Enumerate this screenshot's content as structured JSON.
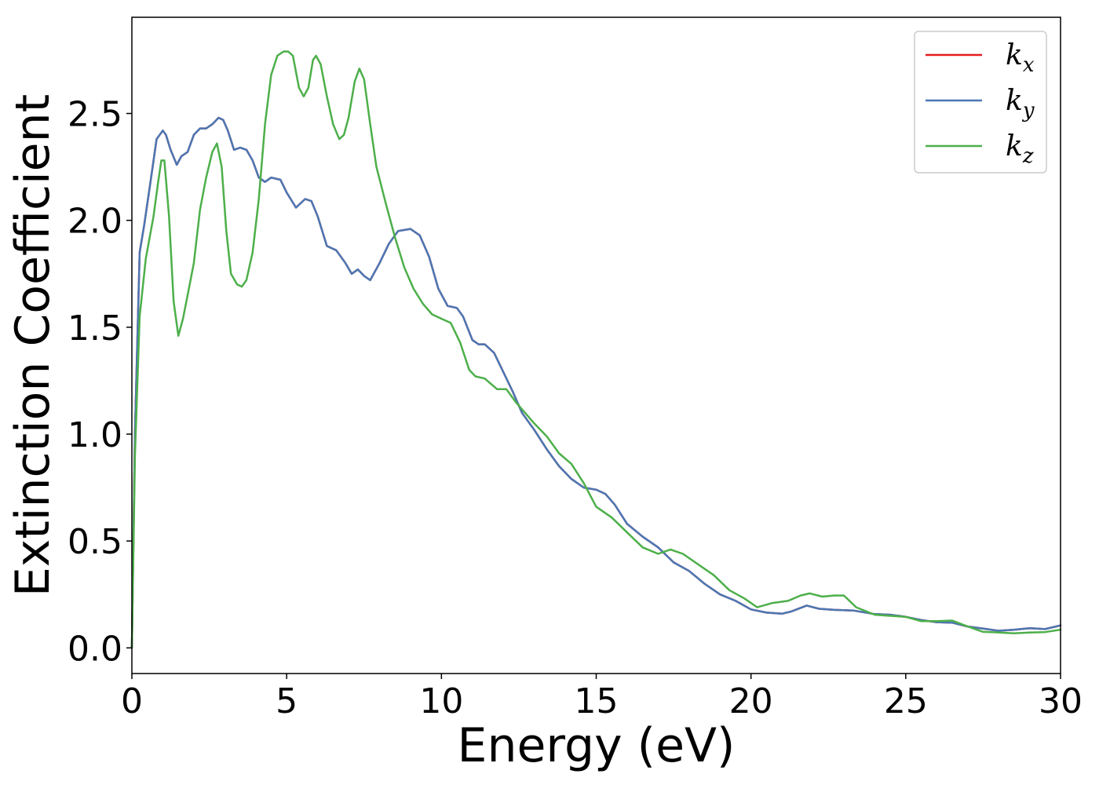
{
  "chart_data": {
    "type": "line",
    "title": "",
    "xlabel": "Energy (eV)",
    "ylabel": "Extinction Coefficient",
    "xlim": [
      0,
      30
    ],
    "ylim": [
      -0.12,
      2.95
    ],
    "xticks": [
      0,
      5,
      10,
      15,
      20,
      25,
      30
    ],
    "xtick_labels": [
      "0",
      "5",
      "10",
      "15",
      "20",
      "25",
      "30"
    ],
    "yticks": [
      0.0,
      0.5,
      1.0,
      1.5,
      2.0,
      2.5
    ],
    "ytick_labels": [
      "0.0",
      "0.5",
      "1.0",
      "1.5",
      "2.0",
      "2.5"
    ],
    "grid": false,
    "legend_position": "top-right",
    "series": [
      {
        "name": "k",
        "subscript": "x",
        "color": "#e41a1c",
        "x": [
          0,
          0.1,
          0.25,
          0.4,
          0.6,
          0.8,
          1.0,
          1.1,
          1.25,
          1.45,
          1.6,
          1.8,
          2.0,
          2.2,
          2.4,
          2.6,
          2.8,
          2.95,
          3.1,
          3.3,
          3.5,
          3.7,
          3.9,
          4.1,
          4.3,
          4.5,
          4.8,
          5.0,
          5.3,
          5.6,
          5.8,
          6.0,
          6.3,
          6.6,
          6.9,
          7.1,
          7.3,
          7.5,
          7.7,
          8.0,
          8.3,
          8.6,
          9.0,
          9.3,
          9.6,
          9.9,
          10.2,
          10.5,
          10.7,
          11.0,
          11.2,
          11.4,
          11.7,
          12.0,
          12.3,
          12.6,
          13.0,
          13.4,
          13.8,
          14.2,
          14.6,
          15.0,
          15.3,
          15.6,
          16.0,
          16.5,
          17.0,
          17.5,
          18.0,
          18.5,
          19.0,
          19.5,
          20.0,
          20.5,
          21.0,
          21.3,
          21.8,
          22.2,
          22.7,
          23.3,
          24.0,
          24.5,
          25.0,
          25.5,
          26.0,
          26.5,
          27.0,
          27.5,
          28.0,
          28.5,
          29.0,
          29.5,
          30.0
        ],
        "y": [
          0,
          1.0,
          1.85,
          1.98,
          2.18,
          2.38,
          2.42,
          2.4,
          2.33,
          2.26,
          2.3,
          2.32,
          2.4,
          2.43,
          2.43,
          2.45,
          2.48,
          2.47,
          2.42,
          2.33,
          2.34,
          2.33,
          2.28,
          2.2,
          2.18,
          2.2,
          2.19,
          2.13,
          2.06,
          2.1,
          2.09,
          2.02,
          1.88,
          1.86,
          1.8,
          1.75,
          1.77,
          1.74,
          1.72,
          1.8,
          1.89,
          1.95,
          1.96,
          1.93,
          1.83,
          1.68,
          1.6,
          1.59,
          1.55,
          1.44,
          1.42,
          1.42,
          1.38,
          1.29,
          1.2,
          1.1,
          1.02,
          0.93,
          0.85,
          0.79,
          0.75,
          0.74,
          0.72,
          0.67,
          0.58,
          0.52,
          0.47,
          0.4,
          0.36,
          0.3,
          0.25,
          0.22,
          0.18,
          0.165,
          0.16,
          0.17,
          0.198,
          0.183,
          0.178,
          0.175,
          0.158,
          0.155,
          0.145,
          0.13,
          0.12,
          0.118,
          0.1,
          0.09,
          0.08,
          0.085,
          0.092,
          0.088,
          0.105
        ]
      },
      {
        "name": "k",
        "subscript": "y",
        "color": "#4a77b4",
        "x": [
          0,
          0.1,
          0.25,
          0.4,
          0.6,
          0.8,
          1.0,
          1.1,
          1.25,
          1.45,
          1.6,
          1.8,
          2.0,
          2.2,
          2.4,
          2.6,
          2.8,
          2.95,
          3.1,
          3.3,
          3.5,
          3.7,
          3.9,
          4.1,
          4.3,
          4.5,
          4.8,
          5.0,
          5.3,
          5.6,
          5.8,
          6.0,
          6.3,
          6.6,
          6.9,
          7.1,
          7.3,
          7.5,
          7.7,
          8.0,
          8.3,
          8.6,
          9.0,
          9.3,
          9.6,
          9.9,
          10.2,
          10.5,
          10.7,
          11.0,
          11.2,
          11.4,
          11.7,
          12.0,
          12.3,
          12.6,
          13.0,
          13.4,
          13.8,
          14.2,
          14.6,
          15.0,
          15.3,
          15.6,
          16.0,
          16.5,
          17.0,
          17.5,
          18.0,
          18.5,
          19.0,
          19.5,
          20.0,
          20.5,
          21.0,
          21.3,
          21.8,
          22.2,
          22.7,
          23.3,
          24.0,
          24.5,
          25.0,
          25.5,
          26.0,
          26.5,
          27.0,
          27.5,
          28.0,
          28.5,
          29.0,
          29.5,
          30.0
        ],
        "y": [
          0,
          1.0,
          1.85,
          1.98,
          2.18,
          2.38,
          2.42,
          2.4,
          2.33,
          2.26,
          2.3,
          2.32,
          2.4,
          2.43,
          2.43,
          2.45,
          2.48,
          2.47,
          2.42,
          2.33,
          2.34,
          2.33,
          2.28,
          2.2,
          2.18,
          2.2,
          2.19,
          2.13,
          2.06,
          2.1,
          2.09,
          2.02,
          1.88,
          1.86,
          1.8,
          1.75,
          1.77,
          1.74,
          1.72,
          1.8,
          1.89,
          1.95,
          1.96,
          1.93,
          1.83,
          1.68,
          1.6,
          1.59,
          1.55,
          1.44,
          1.42,
          1.42,
          1.38,
          1.29,
          1.2,
          1.1,
          1.02,
          0.93,
          0.85,
          0.79,
          0.75,
          0.74,
          0.72,
          0.67,
          0.58,
          0.52,
          0.47,
          0.4,
          0.36,
          0.3,
          0.25,
          0.22,
          0.18,
          0.165,
          0.16,
          0.17,
          0.198,
          0.183,
          0.178,
          0.175,
          0.158,
          0.155,
          0.145,
          0.13,
          0.12,
          0.118,
          0.1,
          0.09,
          0.08,
          0.085,
          0.092,
          0.088,
          0.105
        ]
      },
      {
        "name": "k",
        "subscript": "z",
        "color": "#4daf4a",
        "x": [
          0,
          0.1,
          0.25,
          0.45,
          0.7,
          0.85,
          0.95,
          1.05,
          1.2,
          1.35,
          1.5,
          1.65,
          1.8,
          2.0,
          2.2,
          2.4,
          2.6,
          2.75,
          2.9,
          3.05,
          3.2,
          3.4,
          3.55,
          3.7,
          3.9,
          4.1,
          4.3,
          4.5,
          4.7,
          4.9,
          5.05,
          5.2,
          5.4,
          5.55,
          5.7,
          5.85,
          5.95,
          6.1,
          6.3,
          6.5,
          6.7,
          6.85,
          7.0,
          7.2,
          7.35,
          7.5,
          7.7,
          7.9,
          8.2,
          8.5,
          8.8,
          9.1,
          9.4,
          9.7,
          10.0,
          10.3,
          10.6,
          10.9,
          11.1,
          11.4,
          11.8,
          12.1,
          12.4,
          12.7,
          13.0,
          13.4,
          13.8,
          14.2,
          14.6,
          15.0,
          15.5,
          16.0,
          16.5,
          17.0,
          17.4,
          17.8,
          18.3,
          18.8,
          19.3,
          19.8,
          20.2,
          20.7,
          21.2,
          21.6,
          21.9,
          22.3,
          22.7,
          23.0,
          23.4,
          24.0,
          24.5,
          25.0,
          25.5,
          26.0,
          26.5,
          27.0,
          27.5,
          28.0,
          28.5,
          29.0,
          29.5,
          30.0
        ],
        "y": [
          0,
          0.9,
          1.55,
          1.82,
          2.02,
          2.18,
          2.28,
          2.28,
          2.02,
          1.62,
          1.46,
          1.54,
          1.65,
          1.8,
          2.05,
          2.2,
          2.32,
          2.36,
          2.25,
          1.95,
          1.75,
          1.7,
          1.69,
          1.72,
          1.85,
          2.1,
          2.45,
          2.68,
          2.77,
          2.79,
          2.79,
          2.77,
          2.62,
          2.58,
          2.62,
          2.75,
          2.77,
          2.73,
          2.58,
          2.45,
          2.38,
          2.4,
          2.48,
          2.65,
          2.71,
          2.66,
          2.45,
          2.25,
          2.08,
          1.92,
          1.78,
          1.68,
          1.61,
          1.56,
          1.54,
          1.52,
          1.43,
          1.3,
          1.27,
          1.26,
          1.21,
          1.21,
          1.15,
          1.1,
          1.05,
          0.99,
          0.91,
          0.86,
          0.77,
          0.66,
          0.61,
          0.54,
          0.47,
          0.44,
          0.46,
          0.44,
          0.39,
          0.34,
          0.27,
          0.23,
          0.19,
          0.21,
          0.22,
          0.245,
          0.255,
          0.24,
          0.245,
          0.245,
          0.19,
          0.155,
          0.15,
          0.145,
          0.125,
          0.125,
          0.128,
          0.1,
          0.075,
          0.072,
          0.068,
          0.072,
          0.074,
          0.085
        ]
      }
    ]
  }
}
